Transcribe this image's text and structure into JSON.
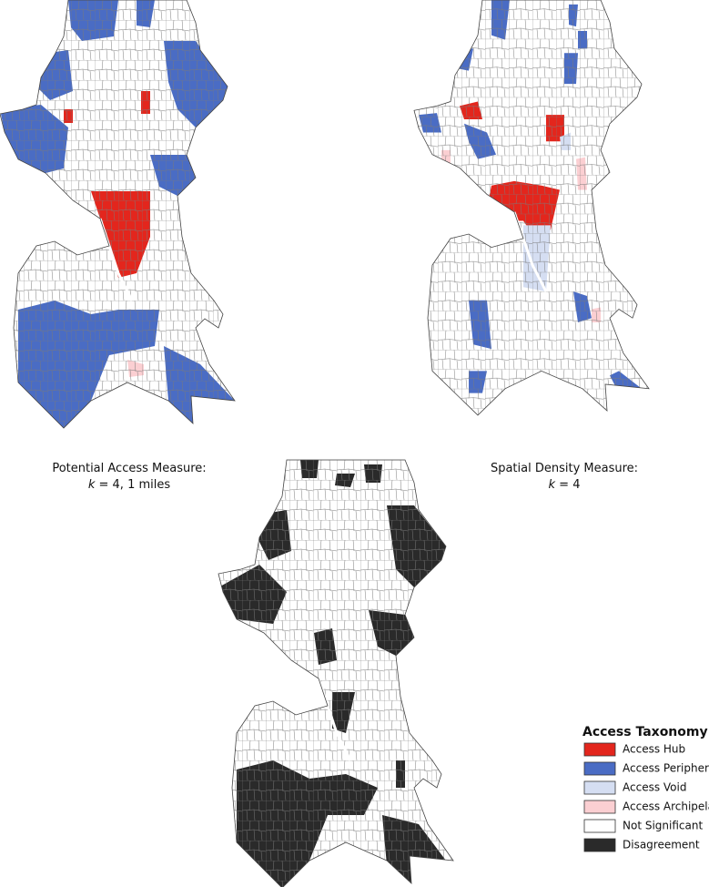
{
  "maps": [
    {
      "caption": {
        "line1": "Potential Access Measure:",
        "line2": {
          "variable": "k",
          "rest": " = 4, 1 miles"
        }
      }
    },
    {
      "caption": {
        "line1": "Spatial Density Measure:",
        "line2": {
          "variable": "k",
          "rest": " = 4"
        }
      }
    }
  ],
  "legend": {
    "title": "Access Taxonomy",
    "items": [
      {
        "label": "Access Hub",
        "color": "#e3261d"
      },
      {
        "label": "Access Periphery",
        "color": "#4a6cc4"
      },
      {
        "label": "Access Void",
        "color": "#d5def2"
      },
      {
        "label": "Access Archipelago",
        "color": "#fbcfd2"
      },
      {
        "label": "Not Significant",
        "color": "#ffffff"
      },
      {
        "label": "Disagreement",
        "color": "#2a2a2a"
      }
    ]
  }
}
